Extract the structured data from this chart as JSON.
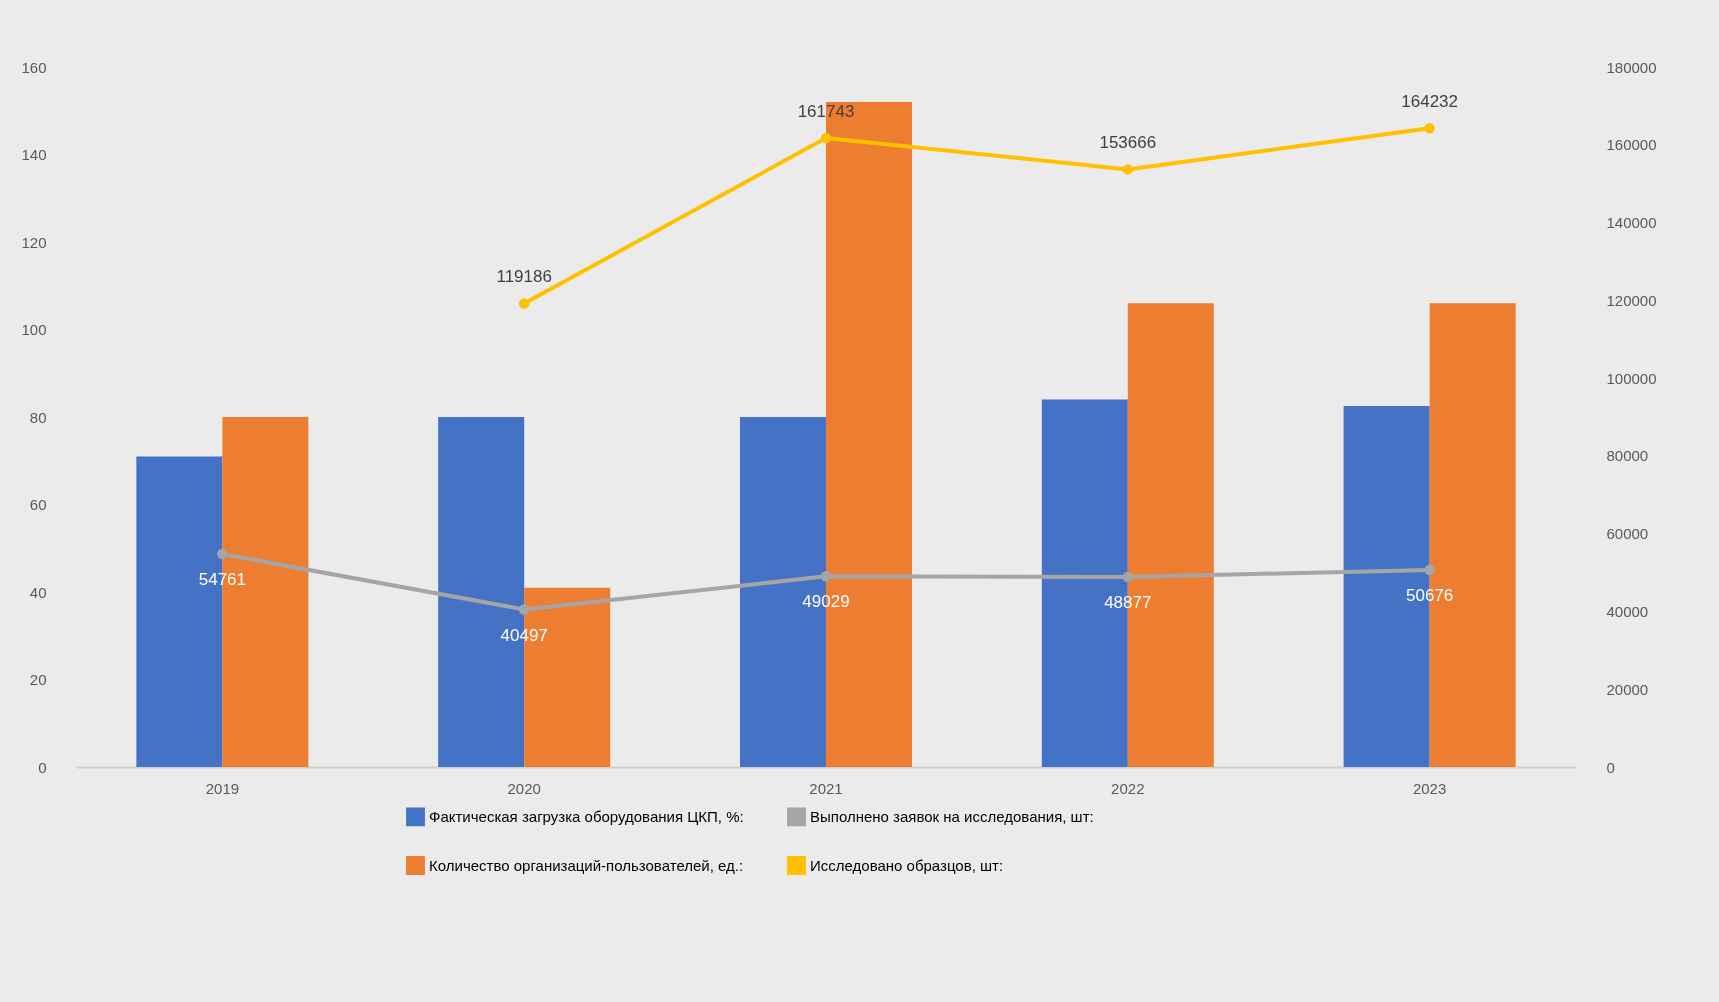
{
  "chart_data": {
    "type": "bar",
    "categories": [
      "2019",
      "2020",
      "2021",
      "2022",
      "2023"
    ],
    "series": [
      {
        "name": "Фактическая загрузка оборудования ЦКП, %:",
        "color": "#4472c4",
        "values": [
          71,
          80,
          80,
          84,
          82.5
        ]
      },
      {
        "name": "Количество организаций-пользователей, ед.:",
        "color": "#ed7d31",
        "values": [
          80,
          41,
          152,
          106,
          106
        ]
      },
      {
        "name": "Выполнено заявок на исследования, шт:",
        "type": "line",
        "axis": "y2",
        "color": "#a5a5a5",
        "values": [
          54761,
          40497,
          49029,
          48877,
          50676
        ],
        "value_labels": [
          "54761",
          "40497",
          "49029",
          "48877",
          "50676"
        ]
      },
      {
        "name": "Исследовано образцов, шт:",
        "type": "line",
        "axis": "y2",
        "color": "#ffc000",
        "values": [
          null,
          119186,
          161743,
          153666,
          164232
        ],
        "value_labels": [
          null,
          "119186",
          "161743",
          "153666",
          "164232"
        ]
      }
    ],
    "ylim": [
      0,
      160
    ],
    "yticks": [
      0,
      20,
      40,
      60,
      80,
      100,
      120,
      140,
      160
    ],
    "y2lim": [
      0,
      180000
    ],
    "y2ticks": [
      0,
      20000,
      40000,
      60000,
      80000,
      100000,
      120000,
      140000,
      160000,
      180000
    ],
    "grid": false,
    "legend": "bottom",
    "marker": "circle",
    "line_style": "solid"
  }
}
